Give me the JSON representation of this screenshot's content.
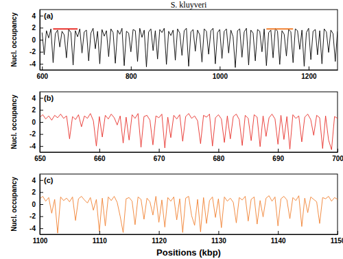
{
  "chart_data": [
    {
      "type": "line",
      "title": "S. kluyveri",
      "label": "(a)",
      "y_label": "Nucl. occupancy",
      "xlim": [
        595,
        1265
      ],
      "xticks": [
        600,
        800,
        1000,
        1200
      ],
      "ylim": [
        -5,
        5
      ],
      "yticks": [
        -4,
        -2,
        0,
        2,
        4
      ],
      "x": [
        600,
        605,
        610,
        615,
        620,
        625,
        630,
        635,
        640,
        645,
        650,
        655,
        660,
        665,
        670,
        675,
        680,
        685,
        690,
        695,
        700,
        705,
        710,
        715,
        720,
        725,
        730,
        735,
        740,
        745,
        750,
        755,
        760,
        765,
        770,
        775,
        780,
        785,
        790,
        795,
        800,
        805,
        810,
        815,
        820,
        825,
        830,
        835,
        840,
        845,
        850,
        855,
        860,
        865,
        870,
        875,
        880,
        885,
        890,
        895,
        900,
        905,
        910,
        915,
        920,
        925,
        930,
        935,
        940,
        945,
        950,
        955,
        960,
        965,
        970,
        975,
        980,
        985,
        990,
        995,
        1000,
        1005,
        1010,
        1015,
        1020,
        1025,
        1030,
        1035,
        1040,
        1045,
        1050,
        1055,
        1060,
        1065,
        1070,
        1075,
        1080,
        1085,
        1090,
        1095,
        1100,
        1105,
        1110,
        1115,
        1120,
        1125,
        1130,
        1135,
        1140,
        1145,
        1150,
        1155,
        1160,
        1165,
        1170,
        1175,
        1180,
        1185,
        1190,
        1195,
        1200,
        1205,
        1210,
        1215,
        1220,
        1225,
        1230,
        1235,
        1240,
        1245,
        1250,
        1255,
        1260,
        1265
      ],
      "series": [
        {
          "color": "#000000",
          "values": [
            1.2,
            -2.5,
            1.5,
            0.3,
            1.8,
            -3.8,
            1.0,
            1.6,
            -1.2,
            1.4,
            0.8,
            -3.0,
            1.7,
            1.2,
            -4.2,
            1.5,
            0.5,
            1.8,
            -2.2,
            1.3,
            1.6,
            -3.5,
            1.1,
            1.9,
            -1.5,
            1.4,
            -4.0,
            1.7,
            0.6,
            1.5,
            -2.8,
            1.8,
            1.2,
            -3.9,
            1.6,
            0.9,
            1.9,
            -4.3,
            1.4,
            1.1,
            -2.0,
            1.7,
            1.5,
            -3.6,
            1.9,
            0.4,
            1.6,
            -4.5,
            1.3,
            1.8,
            -1.8,
            1.5,
            -3.2,
            1.7,
            1.2,
            1.9,
            -4.1,
            1.4,
            0.7,
            1.6,
            -3.4,
            1.8,
            1.1,
            -2.6,
            1.5,
            1.9,
            -4.4,
            1.3,
            1.7,
            -1.9,
            1.6,
            0.8,
            -3.7,
            1.8,
            1.4,
            -2.4,
            1.5,
            1.9,
            -4.0,
            1.2,
            1.7,
            -3.1,
            1.4,
            1.8,
            -2.2,
            1.6,
            0.5,
            -4.6,
            1.5,
            1.8,
            -2.9,
            1.3,
            1.9,
            -4.2,
            1.6,
            1.1,
            -3.5,
            1.7,
            1.4,
            -2.0,
            1.8,
            -4.3,
            1.2,
            1.6,
            -3.0,
            1.9,
            1.4,
            -4.1,
            1.5,
            0.9,
            -2.7,
            1.7,
            1.3,
            -3.8,
            1.8,
            1.5,
            -1.6,
            1.6,
            -4.4,
            1.2,
            1.9,
            -3.3,
            1.4,
            1.7,
            -2.5,
            1.5,
            -4.0,
            1.8,
            1.3,
            -2.1,
            1.6,
            1.0,
            -3.6,
            1.4
          ]
        }
      ],
      "highlights": [
        {
          "x": [
            625,
            680
          ],
          "y": 1.8,
          "color": "#e8302a"
        },
        {
          "x": [
            1105,
            1165
          ],
          "y": 1.8,
          "color": "#f08030"
        }
      ]
    },
    {
      "type": "line",
      "label": "(b)",
      "y_label": "Nucl. occupancy",
      "xlim": [
        650,
        700
      ],
      "xticks": [
        650,
        660,
        670,
        680,
        690,
        700
      ],
      "ylim": [
        -5,
        5
      ],
      "yticks": [
        -4,
        -2,
        0,
        2,
        4
      ],
      "x": [
        650,
        650.5,
        651,
        651.5,
        652,
        652.5,
        653,
        653.5,
        654,
        654.5,
        655,
        655.5,
        656,
        656.5,
        657,
        657.5,
        658,
        658.5,
        659,
        659.5,
        660,
        660.5,
        661,
        661.5,
        662,
        662.5,
        663,
        663.5,
        664,
        664.5,
        665,
        665.5,
        666,
        666.5,
        667,
        667.5,
        668,
        668.5,
        669,
        669.5,
        670,
        670.5,
        671,
        671.5,
        672,
        672.5,
        673,
        673.5,
        674,
        674.5,
        675,
        675.5,
        676,
        676.5,
        677,
        677.5,
        678,
        678.5,
        679,
        679.5,
        680,
        680.5,
        681,
        681.5,
        682,
        682.5,
        683,
        683.5,
        684,
        684.5,
        685,
        685.5,
        686,
        686.5,
        687,
        687.5,
        688,
        688.5,
        689,
        689.5,
        690,
        690.5,
        691,
        691.5,
        692,
        692.5,
        693,
        693.5,
        694,
        694.5,
        695,
        695.5,
        696,
        696.5,
        697,
        697.5,
        698,
        698.5,
        699,
        699.5,
        700
      ],
      "series": [
        {
          "color": "#e8302a",
          "values": [
            0.8,
            1.2,
            0.5,
            1.0,
            0.3,
            1.1,
            0.7,
            1.3,
            0.6,
            1.0,
            -2.8,
            0.9,
            0.4,
            1.2,
            -0.8,
            1.0,
            0.6,
            1.4,
            0.2,
            -4.0,
            0.9,
            -2.5,
            1.1,
            0.5,
            1.3,
            0.7,
            -0.5,
            1.0,
            -3.5,
            0.8,
            -3.0,
            1.2,
            0.6,
            1.4,
            -4.2,
            0.9,
            1.1,
            0.3,
            -3.8,
            1.0,
            0.7,
            1.3,
            -4.3,
            0.8,
            -2.6,
            1.1,
            0.5,
            1.2,
            -3.2,
            0.9,
            1.4,
            0.6,
            1.0,
            0.2,
            -3.6,
            1.1,
            0.8,
            1.3,
            -4.0,
            0.7,
            1.2,
            0.5,
            -3.4,
            1.0,
            -2.8,
            0.9,
            1.3,
            0.4,
            -3.9,
            1.1,
            0.6,
            -3.1,
            1.2,
            0.8,
            -4.1,
            1.0,
            -2.4,
            0.7,
            1.3,
            0.5,
            -3.7,
            1.1,
            -2.9,
            0.9,
            -4.5,
            1.2,
            0.6,
            1.0,
            -3.3,
            0.8,
            1.3,
            0.4,
            -2.2,
            1.1,
            0.7,
            -4.4,
            1.0,
            -3.0,
            -4.6,
            0.9,
            0.6
          ]
        }
      ]
    },
    {
      "type": "line",
      "label": "(c)",
      "y_label": "Nucl. occupancy",
      "x_label": "Positions (kbp)",
      "xlim": [
        1100,
        1150
      ],
      "xticks": [
        1100,
        1110,
        1120,
        1130,
        1140,
        1150
      ],
      "ylim": [
        -5,
        5
      ],
      "yticks": [
        -4,
        -2,
        0,
        2,
        4
      ],
      "x": [
        1100,
        1100.5,
        1101,
        1101.5,
        1102,
        1102.5,
        1103,
        1103.5,
        1104,
        1104.5,
        1105,
        1105.5,
        1106,
        1106.5,
        1107,
        1107.5,
        1108,
        1108.5,
        1109,
        1109.5,
        1110,
        1110.5,
        1111,
        1111.5,
        1112,
        1112.5,
        1113,
        1113.5,
        1114,
        1114.5,
        1115,
        1115.5,
        1116,
        1116.5,
        1117,
        1117.5,
        1118,
        1118.5,
        1119,
        1119.5,
        1120,
        1120.5,
        1121,
        1121.5,
        1122,
        1122.5,
        1123,
        1123.5,
        1124,
        1124.5,
        1125,
        1125.5,
        1126,
        1126.5,
        1127,
        1127.5,
        1128,
        1128.5,
        1129,
        1129.5,
        1130,
        1130.5,
        1131,
        1131.5,
        1132,
        1132.5,
        1133,
        1133.5,
        1134,
        1134.5,
        1135,
        1135.5,
        1136,
        1136.5,
        1137,
        1137.5,
        1138,
        1138.5,
        1139,
        1139.5,
        1140,
        1140.5,
        1141,
        1141.5,
        1142,
        1142.5,
        1143,
        1143.5,
        1144,
        1144.5,
        1145,
        1145.5,
        1146,
        1146.5,
        1147,
        1147.5,
        1148,
        1148.5,
        1149,
        1149.5,
        1150
      ],
      "series": [
        {
          "color": "#f08030",
          "values": [
            0.9,
            1.3,
            0.5,
            1.1,
            -1.5,
            0.8,
            -4.8,
            1.2,
            0.6,
            1.0,
            0.4,
            1.2,
            -2.7,
            0.9,
            1.3,
            0.7,
            0.2,
            1.1,
            -1.0,
            0.8,
            -4.5,
            1.0,
            -3.6,
            1.2,
            0.6,
            1.3,
            0.3,
            -2.0,
            -4.7,
            0.9,
            1.1,
            0.5,
            -3.4,
            1.2,
            0.8,
            -2.5,
            1.0,
            0.4,
            -1.8,
            1.3,
            -3.0,
            0.7,
            -3.8,
            1.1,
            0.5,
            1.2,
            -2.6,
            0.9,
            -4.7,
            1.0,
            1.3,
            -1.9,
            -3.5,
            0.8,
            -4.6,
            1.1,
            -3.2,
            0.6,
            1.2,
            -2.2,
            0.9,
            -3.9,
            1.2,
            0.5,
            1.0,
            0.3,
            -3.1,
            1.1,
            0.7,
            1.3,
            -2.8,
            0.8,
            1.2,
            -3.3,
            0.6,
            -2.1,
            1.0,
            1.4,
            0.5,
            1.2,
            -3.6,
            0.9,
            1.3,
            0.7,
            -2.4,
            1.1,
            0.6,
            1.4,
            -3.7,
            1.0,
            -1.4,
            1.2,
            0.8,
            0.4,
            -3.2,
            1.1,
            0.9,
            1.3,
            0.5,
            1.1,
            0.8
          ]
        }
      ]
    }
  ]
}
